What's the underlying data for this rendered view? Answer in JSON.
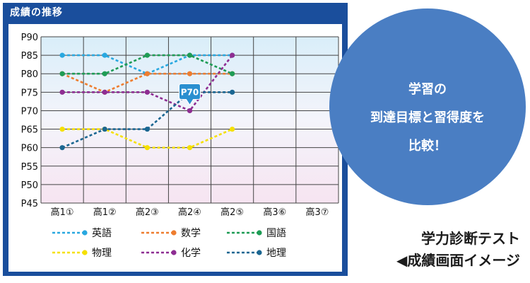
{
  "panel": {
    "title": "成績の推移"
  },
  "callout": {
    "line1": "学習の",
    "line2": "到達目標と習得度を",
    "line3": "比較！"
  },
  "caption": {
    "line1": "学力診断テスト",
    "line2": "◀成績画面イメージ"
  },
  "chart_data": {
    "type": "line",
    "categories": [
      "高1①",
      "高1②",
      "高2③",
      "高2④",
      "高2⑤",
      "高3⑥",
      "高3⑦"
    ],
    "y_ticks": [
      "P90",
      "P85",
      "P80",
      "P75",
      "P70",
      "P65",
      "P60",
      "P55",
      "P50",
      "P45"
    ],
    "ylim": [
      45,
      90
    ],
    "grid": true,
    "legend_position": "bottom",
    "series": [
      {
        "name": "英語",
        "color": "#29a8e0",
        "values": [
          85,
          85,
          80,
          85,
          85,
          null,
          null
        ]
      },
      {
        "name": "数学",
        "color": "#ee7d2f",
        "values": [
          80,
          75,
          80,
          80,
          80,
          null,
          null
        ]
      },
      {
        "name": "国語",
        "color": "#1e9c55",
        "values": [
          80,
          80,
          85,
          85,
          80,
          null,
          null
        ]
      },
      {
        "name": "物理",
        "color": "#f5e000",
        "values": [
          65,
          65,
          60,
          60,
          65,
          null,
          null
        ]
      },
      {
        "name": "化学",
        "color": "#8e2d92",
        "values": [
          75,
          75,
          75,
          70,
          85,
          null,
          null
        ]
      },
      {
        "name": "地理",
        "color": "#1a6691",
        "values": [
          60,
          65,
          65,
          75,
          75,
          null,
          null
        ]
      }
    ],
    "annotation": {
      "label": "P70",
      "category": "高2④",
      "value": 70
    }
  }
}
